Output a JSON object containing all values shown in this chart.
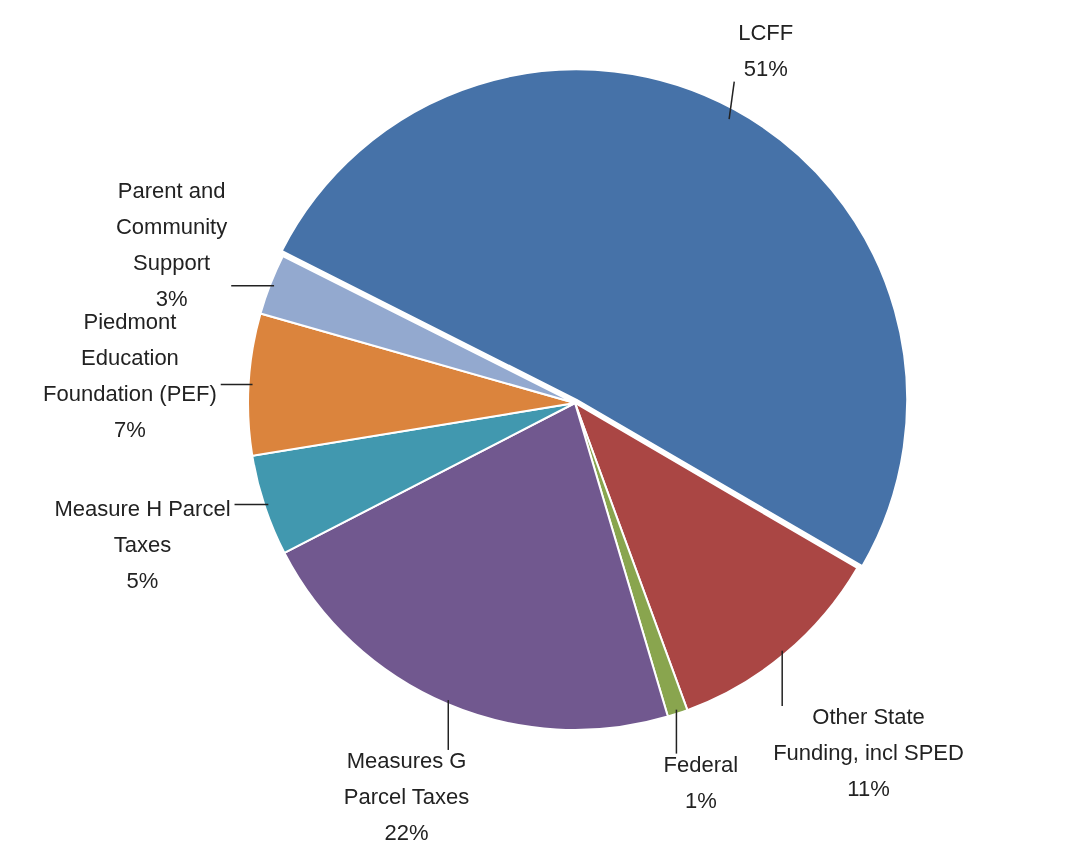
{
  "chart_data": {
    "type": "pie",
    "categories": [
      "LCFF",
      "Other State Funding, incl SPED",
      "Federal",
      "Measures G Parcel Taxes",
      "Measure H Parcel Taxes",
      "Piedmont Education Foundation (PEF)",
      "Parent and Community Support"
    ],
    "values": [
      51,
      11,
      1,
      22,
      5,
      7,
      3
    ],
    "value_labels": [
      "51%",
      "11%",
      "1%",
      "22%",
      "5%",
      "7%",
      "3%"
    ],
    "colors": [
      "#4672a8",
      "#aa4644",
      "#89a54e",
      "#71588f",
      "#4198af",
      "#db843d",
      "#93a9cf"
    ]
  }
}
